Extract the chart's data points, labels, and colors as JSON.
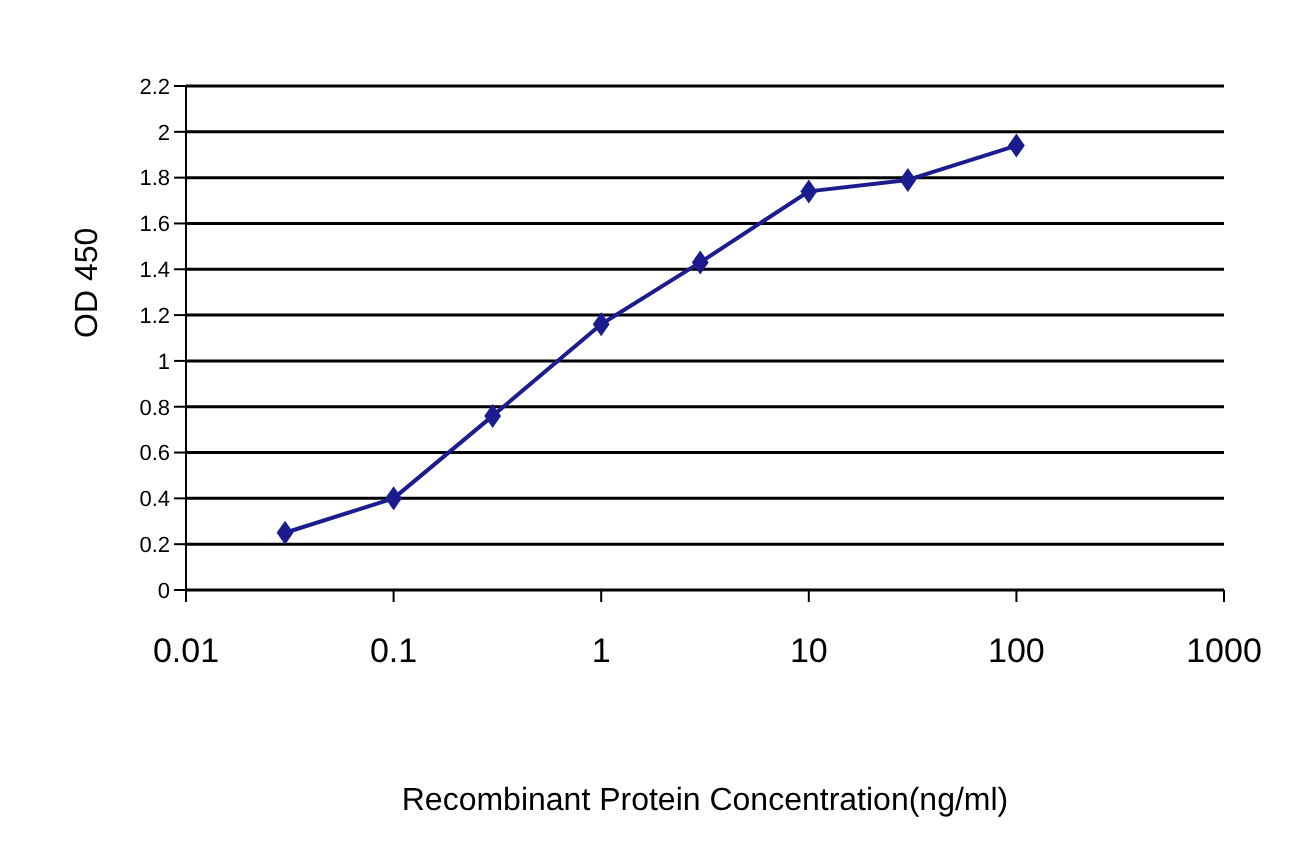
{
  "chart_data": {
    "type": "line",
    "xlabel": "Recombinant Protein Concentration(ng/ml)",
    "ylabel": "OD 450",
    "x": [
      0.03,
      0.1,
      0.3,
      1,
      3,
      10,
      30,
      100
    ],
    "series": [
      {
        "color": "#1c1c8f",
        "values": [
          0.25,
          0.4,
          0.76,
          1.16,
          1.43,
          1.74,
          1.79,
          1.94
        ]
      }
    ],
    "log": "x",
    "xlim": [
      0.01,
      1000
    ],
    "xticks": [
      0.01,
      0.1,
      1,
      10,
      100,
      1000
    ],
    "ylim": [
      0,
      2.2
    ],
    "yticks": [
      0,
      0.2,
      0.4,
      0.6,
      0.8,
      1,
      1.2,
      1.4,
      1.6,
      1.8,
      2,
      2.2
    ],
    "grid": "y",
    "marker": "diamond",
    "line_style": "solid",
    "legend": false
  }
}
